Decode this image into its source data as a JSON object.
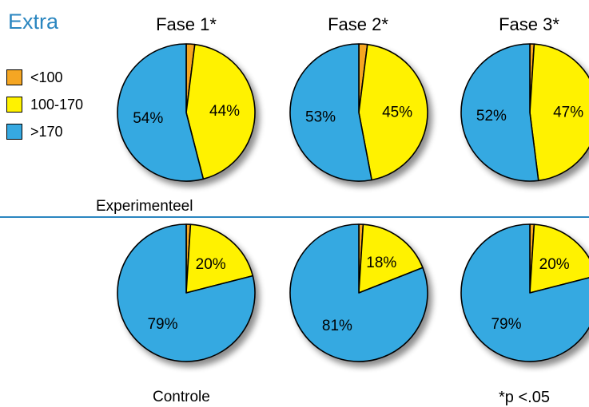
{
  "title": "Extra",
  "phases": [
    "Fase 1*",
    "Fase 2*",
    "Fase 3*"
  ],
  "legend": [
    {
      "label": "<100",
      "color": "#f5a623"
    },
    {
      "label": "100-170",
      "color": "#fff200"
    },
    {
      "label": ">170",
      "color": "#36a9e1"
    }
  ],
  "groups": {
    "experimental": "Experimenteel",
    "control": "Controle"
  },
  "footnote": "*p <.05",
  "chart_data": [
    {
      "type": "pie",
      "group": "Experimenteel",
      "phase": "Fase 1*",
      "categories": [
        "<100",
        "100-170",
        ">170"
      ],
      "values": [
        2,
        44,
        54
      ],
      "labels": [
        "",
        "44%",
        "54%"
      ]
    },
    {
      "type": "pie",
      "group": "Experimenteel",
      "phase": "Fase 2*",
      "categories": [
        "<100",
        "100-170",
        ">170"
      ],
      "values": [
        2,
        45,
        53
      ],
      "labels": [
        "",
        "45%",
        "53%"
      ]
    },
    {
      "type": "pie",
      "group": "Experimenteel",
      "phase": "Fase 3*",
      "categories": [
        "<100",
        "100-170",
        ">170"
      ],
      "values": [
        1,
        47,
        52
      ],
      "labels": [
        "",
        "47%",
        "52%"
      ]
    },
    {
      "type": "pie",
      "group": "Controle",
      "phase": "Fase 1*",
      "categories": [
        "<100",
        "100-170",
        ">170"
      ],
      "values": [
        1,
        20,
        79
      ],
      "labels": [
        "",
        "20%",
        "79%"
      ]
    },
    {
      "type": "pie",
      "group": "Controle",
      "phase": "Fase 2*",
      "categories": [
        "<100",
        "100-170",
        ">170"
      ],
      "values": [
        1,
        18,
        81
      ],
      "labels": [
        "",
        "18%",
        "81%"
      ]
    },
    {
      "type": "pie",
      "group": "Controle",
      "phase": "Fase 3*",
      "categories": [
        "<100",
        "100-170",
        ">170"
      ],
      "values": [
        1,
        20,
        79
      ],
      "labels": [
        "",
        "20%",
        "79%"
      ]
    }
  ]
}
